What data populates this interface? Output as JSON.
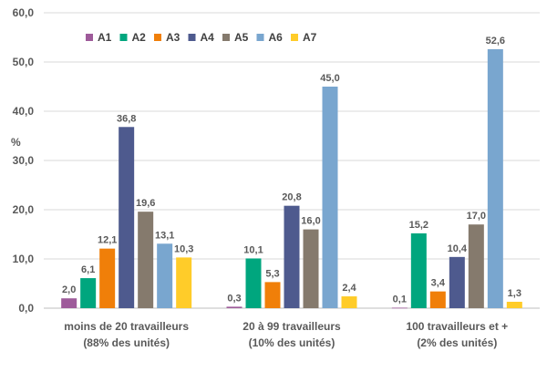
{
  "chart_data": {
    "type": "bar",
    "ylabel": "%",
    "ylim": [
      0,
      60
    ],
    "yticks": [
      "0,0",
      "10,0",
      "20,0",
      "30,0",
      "40,0",
      "50,0",
      "60,0"
    ],
    "grid": true,
    "legend_position": "top-left",
    "categories": [
      [
        "moins de 20 travailleurs",
        "(88% des unités)"
      ],
      [
        "20 à 99 travailleurs",
        "(10% des unités)"
      ],
      [
        "100 travailleurs et +",
        "(2% des unités)"
      ]
    ],
    "series": [
      {
        "name": "A1",
        "color": "#9E5B9A",
        "values": [
          2.0,
          0.3,
          0.1
        ],
        "labels": [
          "2,0",
          "0,3",
          "0,1"
        ]
      },
      {
        "name": "A2",
        "color": "#00A67E",
        "values": [
          6.1,
          10.1,
          15.2
        ],
        "labels": [
          "6,1",
          "10,1",
          "15,2"
        ]
      },
      {
        "name": "A3",
        "color": "#F07F09",
        "values": [
          12.1,
          5.3,
          3.4
        ],
        "labels": [
          "12,1",
          "5,3",
          "3,4"
        ]
      },
      {
        "name": "A4",
        "color": "#4E5A8E",
        "values": [
          36.8,
          20.8,
          10.4
        ],
        "labels": [
          "36,8",
          "20,8",
          "10,4"
        ]
      },
      {
        "name": "A5",
        "color": "#857A6D",
        "values": [
          19.6,
          16.0,
          17.0
        ],
        "labels": [
          "19,6",
          "16,0",
          "17,0"
        ]
      },
      {
        "name": "A6",
        "color": "#79A6CF",
        "values": [
          13.1,
          45.0,
          52.6
        ],
        "labels": [
          "13,1",
          "45,0",
          "52,6"
        ]
      },
      {
        "name": "A7",
        "color": "#FFCC29",
        "values": [
          10.3,
          2.4,
          1.3
        ],
        "labels": [
          "10,3",
          "2,4",
          "1,3"
        ]
      }
    ]
  }
}
